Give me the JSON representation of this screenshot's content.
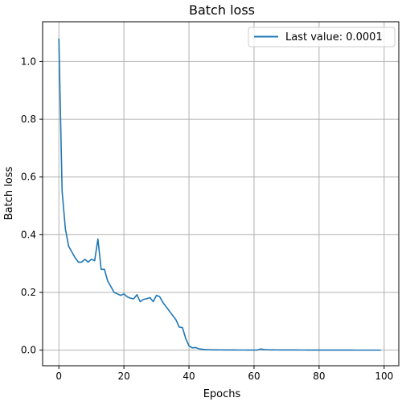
{
  "chart_data": {
    "type": "line",
    "title": "Batch loss",
    "xlabel": "Epochs",
    "ylabel": "Batch loss",
    "xlim": [
      -5,
      104.5
    ],
    "ylim": [
      -0.054,
      1.138
    ],
    "xticks": [
      0,
      20,
      40,
      60,
      80,
      100
    ],
    "yticks": [
      0.0,
      0.2,
      0.4,
      0.6,
      0.8,
      1.0
    ],
    "xtick_labels": [
      "0",
      "20",
      "40",
      "60",
      "80",
      "100"
    ],
    "ytick_labels": [
      "0.0",
      "0.2",
      "0.4",
      "0.6",
      "0.8",
      "1.0"
    ],
    "grid": true,
    "legend_position": "top-right",
    "series": [
      {
        "name": "Last value: 0.0001",
        "color": "#1f77b4",
        "x": [
          0,
          1,
          2,
          3,
          4,
          5,
          6,
          7,
          8,
          9,
          10,
          11,
          12,
          13,
          14,
          15,
          16,
          17,
          18,
          19,
          20,
          21,
          22,
          23,
          24,
          25,
          26,
          27,
          28,
          29,
          30,
          31,
          32,
          33,
          34,
          35,
          36,
          37,
          38,
          39,
          40,
          41,
          42,
          43,
          44,
          45,
          46,
          47,
          48,
          49,
          50,
          51,
          52,
          53,
          54,
          55,
          56,
          57,
          58,
          59,
          60,
          61,
          62,
          63,
          64,
          65,
          66,
          67,
          68,
          69,
          70,
          71,
          72,
          73,
          74,
          75,
          76,
          77,
          78,
          79,
          80,
          81,
          82,
          83,
          84,
          85,
          86,
          87,
          88,
          89,
          90,
          91,
          92,
          93,
          94,
          95,
          96,
          97,
          98,
          99
        ],
        "y": [
          1.08,
          0.55,
          0.42,
          0.36,
          0.34,
          0.32,
          0.305,
          0.305,
          0.315,
          0.305,
          0.315,
          0.31,
          0.385,
          0.28,
          0.28,
          0.24,
          0.22,
          0.2,
          0.195,
          0.19,
          0.195,
          0.185,
          0.18,
          0.178,
          0.192,
          0.168,
          0.176,
          0.178,
          0.182,
          0.168,
          0.19,
          0.185,
          0.165,
          0.15,
          0.135,
          0.12,
          0.105,
          0.08,
          0.078,
          0.04,
          0.015,
          0.008,
          0.009,
          0.005,
          0.003,
          0.002,
          0.0015,
          0.001,
          0.001,
          0.001,
          0.0008,
          0.0007,
          0.0006,
          0.0005,
          0.0005,
          0.0004,
          0.0004,
          0.0004,
          0.0003,
          0.0003,
          0.0003,
          0.0003,
          0.004,
          0.002,
          0.0015,
          0.001,
          0.0009,
          0.0008,
          0.0007,
          0.0006,
          0.0006,
          0.0005,
          0.0005,
          0.0005,
          0.0004,
          0.0004,
          0.0004,
          0.0003,
          0.0003,
          0.0003,
          0.0003,
          0.0003,
          0.0002,
          0.0002,
          0.0002,
          0.0002,
          0.0002,
          0.0002,
          0.0002,
          0.0002,
          0.0002,
          0.0001,
          0.0001,
          0.0001,
          0.0001,
          0.0001,
          0.0001,
          0.0001,
          0.0001,
          0.0001
        ]
      }
    ]
  }
}
